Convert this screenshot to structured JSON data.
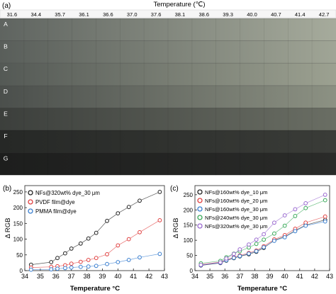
{
  "panel_a": {
    "label": "(a)",
    "header_label": "Temperature (℃)",
    "temperatures": [
      "31.6",
      "34.4",
      "35.7",
      "36.1",
      "36.6",
      "37.0",
      "37.6",
      "38.1",
      "38.6",
      "39.3",
      "40.0",
      "40.7",
      "41.4",
      "42.7"
    ],
    "rows": [
      {
        "label": "A",
        "dark": "#5f6460",
        "light": "#a6ab9c"
      },
      {
        "label": "B",
        "dark": "#595e5a",
        "light": "#a0a596"
      },
      {
        "label": "C",
        "dark": "#545955",
        "light": "#9ca191"
      },
      {
        "label": "D",
        "dark": "#4b4f4c",
        "light": "#8c9183"
      },
      {
        "label": "E",
        "dark": "#3c3f3c",
        "light": "#6a6e64"
      },
      {
        "label": "F",
        "dark": "#262826",
        "light": "#3a3c38"
      },
      {
        "label": "G",
        "dark": "#1d1e1d",
        "light": "#2a2b29"
      }
    ]
  },
  "chart_data": [
    {
      "type": "line",
      "panel_label": "(b)",
      "xlabel": "Temperature °C",
      "ylabel": "Δ RGB",
      "xlim": [
        34,
        43
      ],
      "ylim": [
        0,
        270
      ],
      "xticks": [
        "34",
        "35",
        "36",
        "37",
        "38",
        "39",
        "40",
        "41",
        "42",
        "43"
      ],
      "yticks": [
        "0",
        "50",
        "100",
        "150",
        "200",
        "250"
      ],
      "x": [
        34.4,
        35.7,
        36.1,
        36.6,
        37.0,
        37.6,
        38.1,
        38.6,
        39.3,
        40.0,
        40.7,
        41.4,
        42.7
      ],
      "series": [
        {
          "name": "NFs@320wt% dye_30 μm",
          "color": "#222222",
          "values": [
            19,
            27,
            40,
            55,
            70,
            86,
            102,
            120,
            158,
            182,
            202,
            222,
            250
          ]
        },
        {
          "name": "PVDF film@dye",
          "color": "#e04040",
          "values": [
            10,
            12,
            14,
            17,
            22,
            28,
            34,
            40,
            52,
            80,
            100,
            122,
            160
          ]
        },
        {
          "name": "PMMA film@dye",
          "color": "#3a7fd0",
          "values": [
            3,
            4,
            6,
            8,
            10,
            12,
            13,
            15,
            21,
            27,
            34,
            42,
            53
          ]
        }
      ]
    },
    {
      "type": "line",
      "panel_label": "(c)",
      "xlabel": "Temperature °C",
      "ylabel": "Δ RGB",
      "xlim": [
        34,
        43
      ],
      "ylim": [
        0,
        280
      ],
      "xticks": [
        "34",
        "35",
        "36",
        "37",
        "38",
        "39",
        "40",
        "41",
        "42",
        "43"
      ],
      "yticks": [
        "0",
        "50",
        "100",
        "150",
        "200",
        "250"
      ],
      "x": [
        34.4,
        35.7,
        36.1,
        36.6,
        37.0,
        37.6,
        38.1,
        38.6,
        39.3,
        40.0,
        40.7,
        41.4,
        42.7
      ],
      "series": [
        {
          "name": "NFs@160wt% dye_10 μm",
          "color": "#222222",
          "values": [
            17,
            25,
            33,
            41,
            47,
            54,
            62,
            75,
            100,
            112,
            132,
            150,
            167
          ]
        },
        {
          "name": "NFs@160wt% dye_20 μm",
          "color": "#e04040",
          "values": [
            20,
            28,
            36,
            44,
            50,
            58,
            66,
            80,
            103,
            117,
            138,
            158,
            178
          ]
        },
        {
          "name": "NFs@160wt% dye_30 μm",
          "color": "#3a7fd0",
          "values": [
            18,
            26,
            34,
            42,
            48,
            56,
            64,
            77,
            98,
            110,
            130,
            148,
            162
          ]
        },
        {
          "name": "NFs@240wt% dye_30 μm",
          "color": "#3aaa5a",
          "values": [
            24,
            32,
            44,
            56,
            64,
            76,
            88,
            102,
            122,
            148,
            180,
            206,
            232
          ]
        },
        {
          "name": "NFs@320wt% dye_30 μm",
          "color": "#9a6ad0",
          "values": [
            19,
            27,
            40,
            55,
            70,
            86,
            102,
            120,
            158,
            182,
            202,
            222,
            250
          ]
        }
      ]
    }
  ]
}
